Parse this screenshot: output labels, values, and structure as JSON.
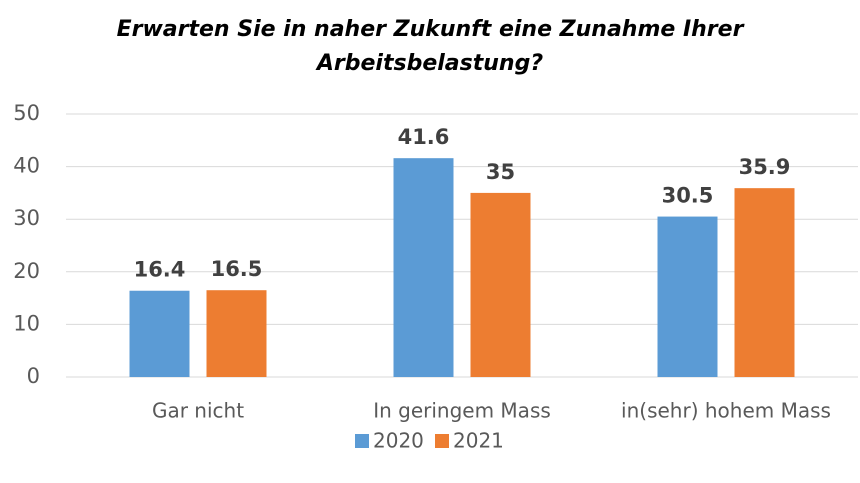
{
  "chart_data": {
    "type": "bar",
    "title": [
      "Erwarten Sie in naher Zukunft eine Zunahme Ihrer",
      "Arbeitsbelastung?"
    ],
    "categories": [
      "Gar nicht",
      "In geringem Mass",
      "in(sehr) hohem Mass"
    ],
    "series": [
      {
        "name": "2020",
        "color": "#5b9bd5",
        "values": [
          16.4,
          41.6,
          30.5
        ]
      },
      {
        "name": "2021",
        "color": "#ed7d31",
        "values": [
          16.5,
          35,
          35.9
        ]
      }
    ],
    "ylim": [
      0,
      50
    ],
    "yticks": [
      0,
      10,
      20,
      30,
      40,
      50
    ],
    "grid": true,
    "legend": "bottom"
  }
}
